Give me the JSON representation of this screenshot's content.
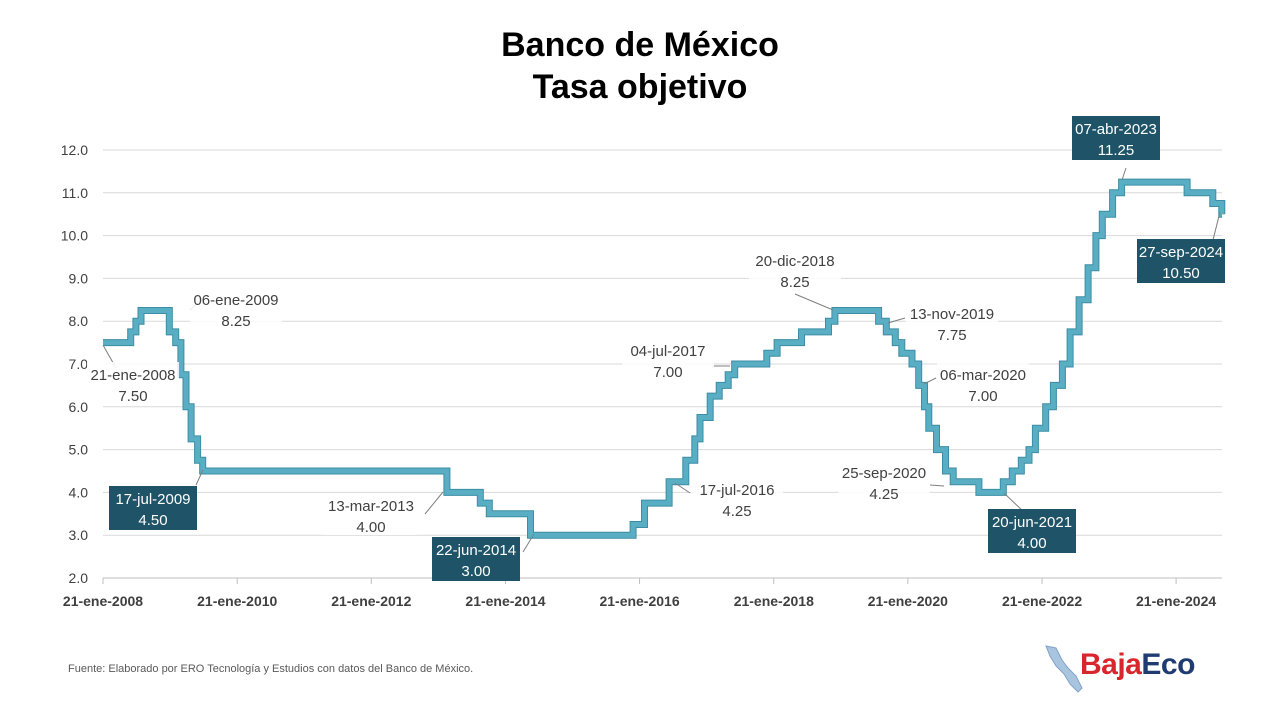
{
  "title_line1": "Banco de México",
  "title_line2": "Tasa objetivo",
  "source": "Fuente: Elaborado por ERO Tecnología y Estudios con datos del Banco de México.",
  "logo": {
    "part1": "Baja",
    "part2": "Eco",
    "color1": "#d9262c",
    "color2": "#1f3c72",
    "icon": "baja-california-map-icon"
  },
  "colors": {
    "line": "#5aaec4",
    "line_edge": "#3b8ea5",
    "box": "#1f5468",
    "grid": "#d9d9d9",
    "axis": "#bfbfbf"
  },
  "chart_data": {
    "type": "line",
    "title": "Banco de México Tasa objetivo",
    "xlabel": "",
    "ylabel": "",
    "ylim": [
      2.0,
      12.0
    ],
    "xlim": [
      "2008-01-21",
      "2024-09-27"
    ],
    "y_ticks": [
      "12.0",
      "11.0",
      "10.0",
      "9.0",
      "8.0",
      "7.0",
      "6.0",
      "5.0",
      "4.0",
      "3.0",
      "2.0"
    ],
    "x_ticks": [
      {
        "date": "2008-01-21",
        "label": "21-ene-2008"
      },
      {
        "date": "2010-01-21",
        "label": "21-ene-2010"
      },
      {
        "date": "2012-01-21",
        "label": "21-ene-2012"
      },
      {
        "date": "2014-01-21",
        "label": "21-ene-2014"
      },
      {
        "date": "2016-01-21",
        "label": "21-ene-2016"
      },
      {
        "date": "2018-01-21",
        "label": "21-ene-2018"
      },
      {
        "date": "2020-01-21",
        "label": "21-ene-2020"
      },
      {
        "date": "2022-01-21",
        "label": "21-ene-2022"
      },
      {
        "date": "2024-01-21",
        "label": "21-ene-2024"
      }
    ],
    "grid": true,
    "series": [
      {
        "points": [
          [
            "2008-01-21",
            7.5
          ],
          [
            "2008-06-20",
            7.75
          ],
          [
            "2008-07-18",
            8.0
          ],
          [
            "2008-08-15",
            8.25
          ],
          [
            "2009-01-16",
            7.75
          ],
          [
            "2009-02-20",
            7.5
          ],
          [
            "2009-03-20",
            6.75
          ],
          [
            "2009-04-17",
            6.0
          ],
          [
            "2009-05-15",
            5.25
          ],
          [
            "2009-06-19",
            4.75
          ],
          [
            "2009-07-17",
            4.5
          ],
          [
            "2013-03-08",
            4.0
          ],
          [
            "2013-09-06",
            3.75
          ],
          [
            "2013-10-25",
            3.5
          ],
          [
            "2014-06-06",
            3.0
          ],
          [
            "2015-12-17",
            3.25
          ],
          [
            "2016-02-17",
            3.75
          ],
          [
            "2016-06-30",
            4.25
          ],
          [
            "2016-09-29",
            4.75
          ],
          [
            "2016-11-17",
            5.25
          ],
          [
            "2016-12-15",
            5.75
          ],
          [
            "2017-02-09",
            6.25
          ],
          [
            "2017-03-30",
            6.5
          ],
          [
            "2017-05-18",
            6.75
          ],
          [
            "2017-06-22",
            7.0
          ],
          [
            "2017-12-14",
            7.25
          ],
          [
            "2018-02-08",
            7.5
          ],
          [
            "2018-06-21",
            7.75
          ],
          [
            "2018-11-15",
            8.0
          ],
          [
            "2018-12-20",
            8.25
          ],
          [
            "2019-08-15",
            8.0
          ],
          [
            "2019-09-26",
            7.75
          ],
          [
            "2019-11-14",
            7.5
          ],
          [
            "2019-12-19",
            7.25
          ],
          [
            "2020-02-13",
            7.0
          ],
          [
            "2020-03-20",
            6.5
          ],
          [
            "2020-04-21",
            6.0
          ],
          [
            "2020-05-14",
            5.5
          ],
          [
            "2020-06-25",
            5.0
          ],
          [
            "2020-08-13",
            4.5
          ],
          [
            "2020-09-24",
            4.25
          ],
          [
            "2021-02-11",
            4.0
          ],
          [
            "2021-06-24",
            4.25
          ],
          [
            "2021-08-12",
            4.5
          ],
          [
            "2021-09-30",
            4.75
          ],
          [
            "2021-11-11",
            5.0
          ],
          [
            "2021-12-16",
            5.5
          ],
          [
            "2022-02-10",
            6.0
          ],
          [
            "2022-03-24",
            6.5
          ],
          [
            "2022-05-12",
            7.0
          ],
          [
            "2022-06-23",
            7.75
          ],
          [
            "2022-08-11",
            8.5
          ],
          [
            "2022-09-29",
            9.25
          ],
          [
            "2022-11-10",
            10.0
          ],
          [
            "2022-12-15",
            10.5
          ],
          [
            "2023-02-09",
            11.0
          ],
          [
            "2023-03-30",
            11.25
          ],
          [
            "2024-03-21",
            11.0
          ],
          [
            "2024-08-08",
            10.75
          ],
          [
            "2024-09-26",
            10.5
          ],
          [
            "2024-09-27",
            10.5
          ]
        ]
      }
    ],
    "annotations": [
      {
        "date": "21-ene-2008",
        "value": "7.50",
        "at": "2008-01-21",
        "y": 7.5,
        "boxed": false
      },
      {
        "date": "06-ene-2009",
        "value": "8.25",
        "at": "2009-01-06",
        "y": 8.25,
        "boxed": false
      },
      {
        "date": "17-jul-2009",
        "value": "4.50",
        "at": "2009-07-17",
        "y": 4.5,
        "boxed": true
      },
      {
        "date": "13-mar-2013",
        "value": "4.00",
        "at": "2013-03-13",
        "y": 4.0,
        "boxed": false
      },
      {
        "date": "22-jun-2014",
        "value": "3.00",
        "at": "2014-06-22",
        "y": 3.0,
        "boxed": true
      },
      {
        "date": "17-jul-2016",
        "value": "4.25",
        "at": "2016-07-17",
        "y": 4.25,
        "boxed": false
      },
      {
        "date": "04-jul-2017",
        "value": "7.00",
        "at": "2017-07-04",
        "y": 7.0,
        "boxed": false
      },
      {
        "date": "20-dic-2018",
        "value": "8.25",
        "at": "2018-12-20",
        "y": 8.25,
        "boxed": false
      },
      {
        "date": "13-nov-2019",
        "value": "7.75",
        "at": "2019-11-13",
        "y": 7.75,
        "boxed": false
      },
      {
        "date": "06-mar-2020",
        "value": "7.00",
        "at": "2020-03-06",
        "y": 7.0,
        "boxed": false
      },
      {
        "date": "25-sep-2020",
        "value": "4.25",
        "at": "2020-09-25",
        "y": 4.25,
        "boxed": false
      },
      {
        "date": "20-jun-2021",
        "value": "4.00",
        "at": "2021-06-20",
        "y": 4.0,
        "boxed": true
      },
      {
        "date": "07-abr-2023",
        "value": "11.25",
        "at": "2023-04-07",
        "y": 11.25,
        "boxed": true
      },
      {
        "date": "27-sep-2024",
        "value": "10.50",
        "at": "2024-09-27",
        "y": 10.5,
        "boxed": true
      }
    ]
  }
}
